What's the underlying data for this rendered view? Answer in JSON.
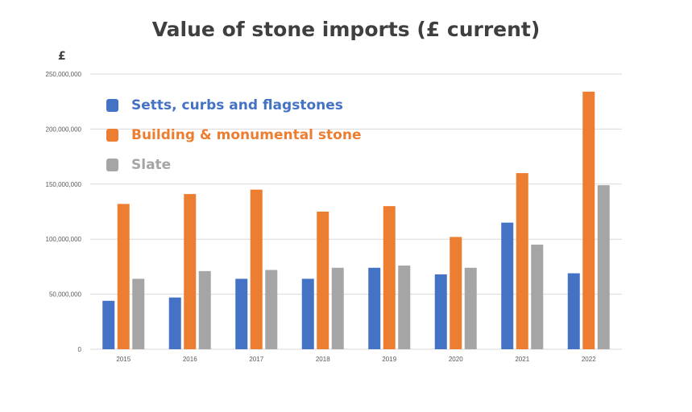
{
  "chart_data": {
    "type": "bar",
    "title": "Value of stone imports (£ current)",
    "ylabel": "£",
    "xlabel": "",
    "categories": [
      "2015",
      "2016",
      "2017",
      "2018",
      "2019",
      "2020",
      "2021",
      "2022"
    ],
    "ylim": [
      0,
      250000000
    ],
    "yticks": [
      "0",
      "50,000,000",
      "100,000,000",
      "150,000,000",
      "200,000,000",
      "250,000,000"
    ],
    "grid": true,
    "legend_position": "top-left",
    "series": [
      {
        "name": "Setts, curbs and flagstones",
        "color": "#4472c4",
        "values": [
          44000000,
          47000000,
          64000000,
          64000000,
          74000000,
          68000000,
          115000000,
          69000000
        ]
      },
      {
        "name": "Building & monumental stone",
        "color": "#ed7d31",
        "values": [
          132000000,
          141000000,
          145000000,
          125000000,
          130000000,
          102000000,
          160000000,
          234000000
        ]
      },
      {
        "name": "Slate",
        "color": "#a5a5a5",
        "values": [
          64000000,
          71000000,
          72000000,
          74000000,
          76000000,
          74000000,
          95000000,
          149000000
        ]
      }
    ]
  }
}
